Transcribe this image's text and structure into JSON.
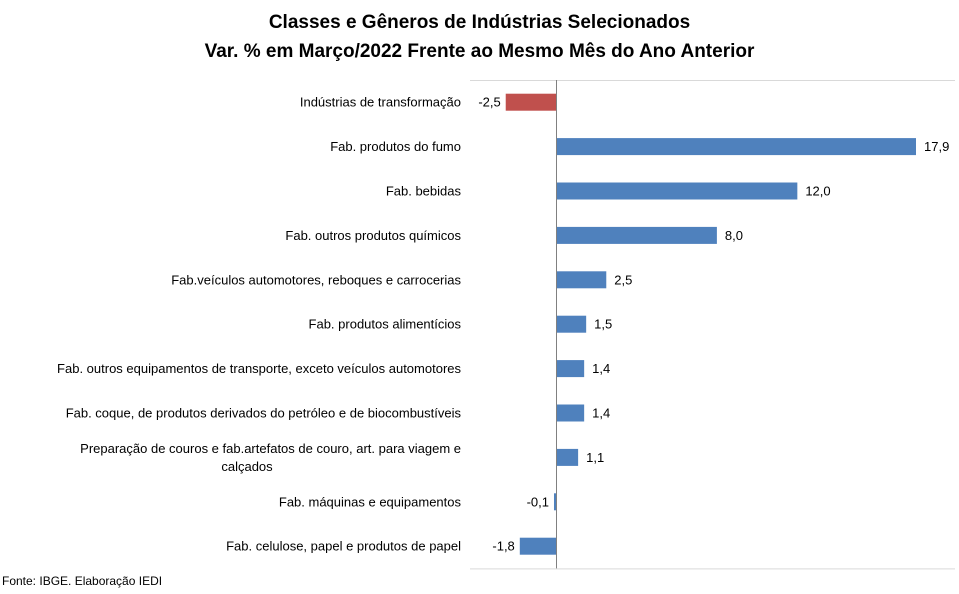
{
  "chart_data": {
    "type": "bar",
    "orientation": "horizontal",
    "title": "Classes e Gêneros de Indústrias Selecionados",
    "subtitle": "Var. % em Março/2022 Frente ao Mesmo Mês do Ano Anterior",
    "xlabel": "",
    "ylabel": "",
    "xlim": [
      -2.5,
      17.9
    ],
    "grid": false,
    "legend": "none",
    "categories": [
      [
        "Indústrias de transformação"
      ],
      [
        "Fab. produtos do fumo"
      ],
      [
        "Fab. bebidas"
      ],
      [
        "Fab. outros produtos químicos"
      ],
      [
        "Fab.veículos automotores, reboques e carrocerias"
      ],
      [
        "Fab. produtos alimentícios"
      ],
      [
        "Fab. outros equipamentos de transporte, exceto veículos automotores"
      ],
      [
        "Fab. coque, de produtos derivados do petróleo e de biocombustíveis"
      ],
      [
        "Preparação de couros e fab.artefatos de couro, art. para viagem e",
        "calçados"
      ],
      [
        "Fab. máquinas e equipamentos"
      ],
      [
        "Fab. celulose, papel e produtos de papel"
      ]
    ],
    "values": [
      -2.5,
      17.9,
      12.0,
      8.0,
      2.5,
      1.5,
      1.4,
      1.4,
      1.1,
      -0.1,
      -1.8
    ],
    "value_labels": [
      "-2,5",
      "17,9",
      "12,0",
      "8,0",
      "2,5",
      "1,5",
      "1,4",
      "1,4",
      "1,1",
      "-0,1",
      "-1,8"
    ],
    "highlight_index": 0,
    "colors": {
      "default": "#4f81bd",
      "highlight": "#c0504d",
      "border": "#d9d9d9",
      "axis": "#808080"
    }
  },
  "source": "Fonte: IBGE. Elaboração IEDI"
}
